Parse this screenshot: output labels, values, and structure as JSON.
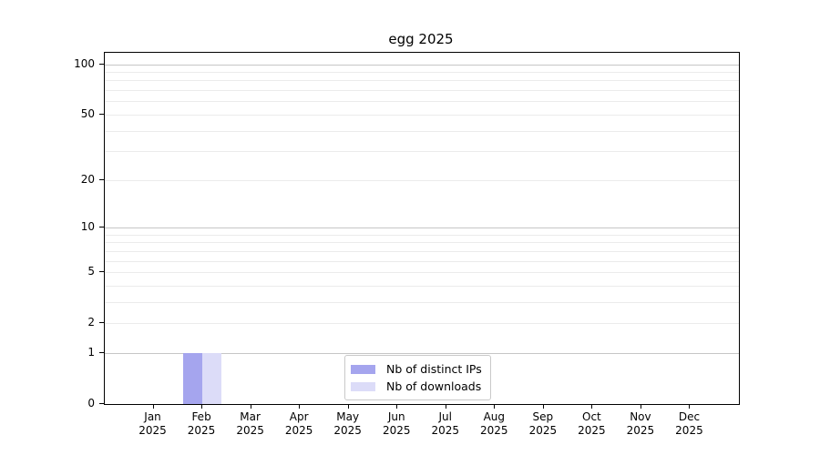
{
  "chart_data": {
    "type": "bar",
    "title": "egg 2025",
    "scale": "log1p",
    "categories": [
      "Jan",
      "Feb",
      "Mar",
      "Apr",
      "May",
      "Jun",
      "Jul",
      "Aug",
      "Sep",
      "Oct",
      "Nov",
      "Dec"
    ],
    "tick_year": "2025",
    "series": [
      {
        "name": "Nb of distinct IPs",
        "color": "#a5a5ee",
        "values": [
          0,
          1,
          0,
          0,
          0,
          0,
          0,
          0,
          0,
          0,
          0,
          0
        ]
      },
      {
        "name": "Nb of downloads",
        "color": "#dcdcf8",
        "values": [
          0,
          1,
          0,
          0,
          0,
          0,
          0,
          0,
          0,
          0,
          0,
          0
        ]
      }
    ],
    "y_ticks": [
      0,
      1,
      2,
      5,
      10,
      20,
      50,
      100
    ],
    "ylim": [
      0,
      117
    ],
    "major_gridlines": [
      1,
      10,
      100
    ],
    "minor_gridlines": [
      2,
      3,
      4,
      5,
      6,
      7,
      8,
      9,
      20,
      30,
      40,
      50,
      60,
      70,
      80,
      90
    ],
    "grid_major_color": "#c6c6c6",
    "grid_minor_color": "#ebebeb",
    "axis_color": "#000000",
    "legend_position": "lower center",
    "bar_value_feb": 1
  }
}
